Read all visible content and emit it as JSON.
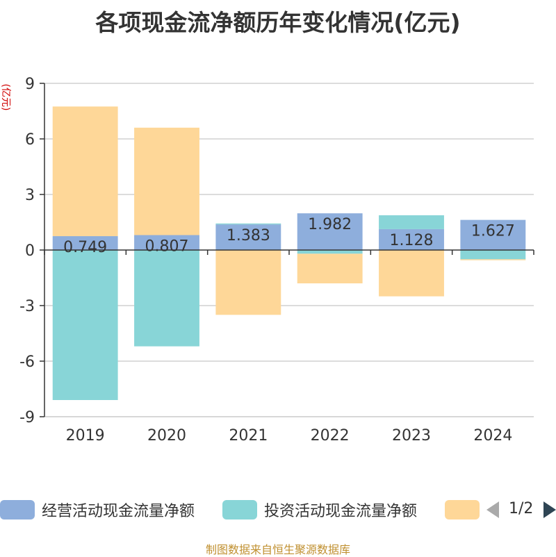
{
  "colors": {
    "operating": "#8eaedc",
    "investing": "#88d5d7",
    "financing": "#fed798",
    "axis": "#333333",
    "grid": "#c8c8c8",
    "unit": "#d00000",
    "text": "#333333"
  },
  "chart_data": {
    "type": "bar",
    "stacked": true,
    "title": "各项现金流净额历年变化情况(亿元)",
    "ylabel": "(亿元)",
    "xlabel": "",
    "ylim": [
      -9,
      9
    ],
    "yticks": [
      "9",
      "6",
      "3",
      "0",
      "-3",
      "-6",
      "-9"
    ],
    "ytick_values": [
      9,
      6,
      3,
      0,
      -3,
      -6,
      -9
    ],
    "grid": true,
    "categories": [
      "2019",
      "2020",
      "2021",
      "2022",
      "2023",
      "2024"
    ],
    "series": [
      {
        "name": "经营活动现金流量净额",
        "color_key": "operating",
        "values": [
          0.749,
          0.807,
          1.383,
          1.982,
          1.128,
          1.627
        ],
        "labels": [
          "0.749",
          "0.807",
          "1.383",
          "1.982",
          "1.128",
          "1.627"
        ]
      },
      {
        "name": "投资活动现金流量净额",
        "color_key": "investing",
        "values": [
          -8.1,
          -5.2,
          0.05,
          -0.2,
          0.75,
          -0.5
        ]
      },
      {
        "name": "",
        "color_key": "financing",
        "values": [
          7.0,
          5.8,
          -3.5,
          -1.6,
          -2.5,
          -0.05
        ]
      }
    ],
    "legend_position": "bottom"
  },
  "legend": {
    "page": "1/2"
  },
  "source": "制图数据来自恒生聚源数据库"
}
